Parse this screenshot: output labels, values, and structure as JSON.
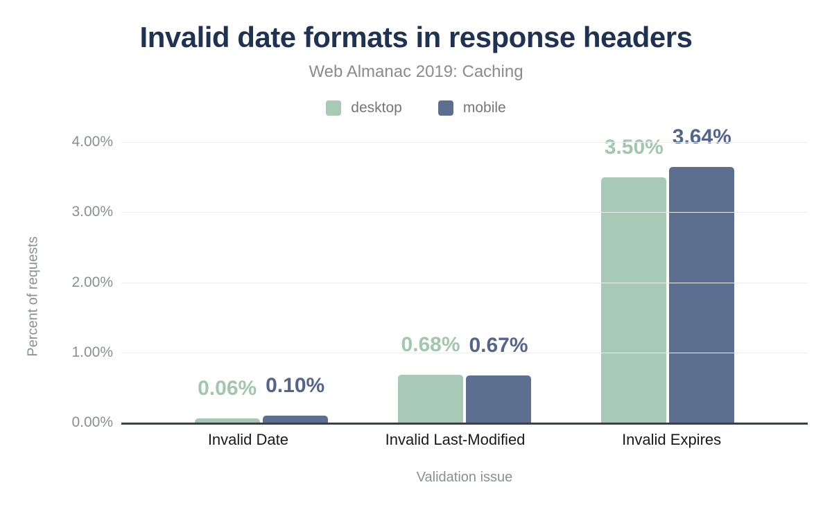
{
  "chart": {
    "title": "Invalid date formats in response headers",
    "subtitle": "Web Almanac 2019: Caching",
    "xlabel": "Validation issue",
    "ylabel": "Percent of requests"
  },
  "chart_data": {
    "type": "bar",
    "title": "Invalid date formats in response headers",
    "subtitle": "Web Almanac 2019: Caching",
    "xlabel": "Validation issue",
    "ylabel": "Percent of requests",
    "categories": [
      "Invalid Date",
      "Invalid Last-Modified",
      "Invalid Expires"
    ],
    "series": [
      {
        "name": "desktop",
        "values": [
          0.06,
          0.68,
          3.5
        ],
        "value_labels": [
          "0.06%",
          "0.68%",
          "3.50%"
        ],
        "color": "#a8c9b5",
        "label_color": "#a2c6ae"
      },
      {
        "name": "mobile",
        "values": [
          0.1,
          0.67,
          3.64
        ],
        "value_labels": [
          "0.10%",
          "0.67%",
          "3.64%"
        ],
        "color": "#5d6f90",
        "label_color": "#53658a"
      }
    ],
    "ylim": [
      0,
      4
    ],
    "yticks": [
      {
        "value": 4,
        "label": "4.00%"
      },
      {
        "value": 3,
        "label": "3.00%"
      },
      {
        "value": 2,
        "label": "2.00%"
      },
      {
        "value": 1,
        "label": "1.00%"
      },
      {
        "value": 0,
        "label": "0.00%"
      }
    ],
    "grid": "horizontal",
    "legend_position": "top"
  },
  "colors": {
    "title": "#1f3251",
    "subtitle": "#8b8b8b",
    "axis_line": "#3c4045",
    "gridline": "#ededed",
    "tick_text": "#8a8f93",
    "category_text": "#19191b",
    "desktop": "#a8c9b5",
    "mobile": "#5d6f90"
  }
}
